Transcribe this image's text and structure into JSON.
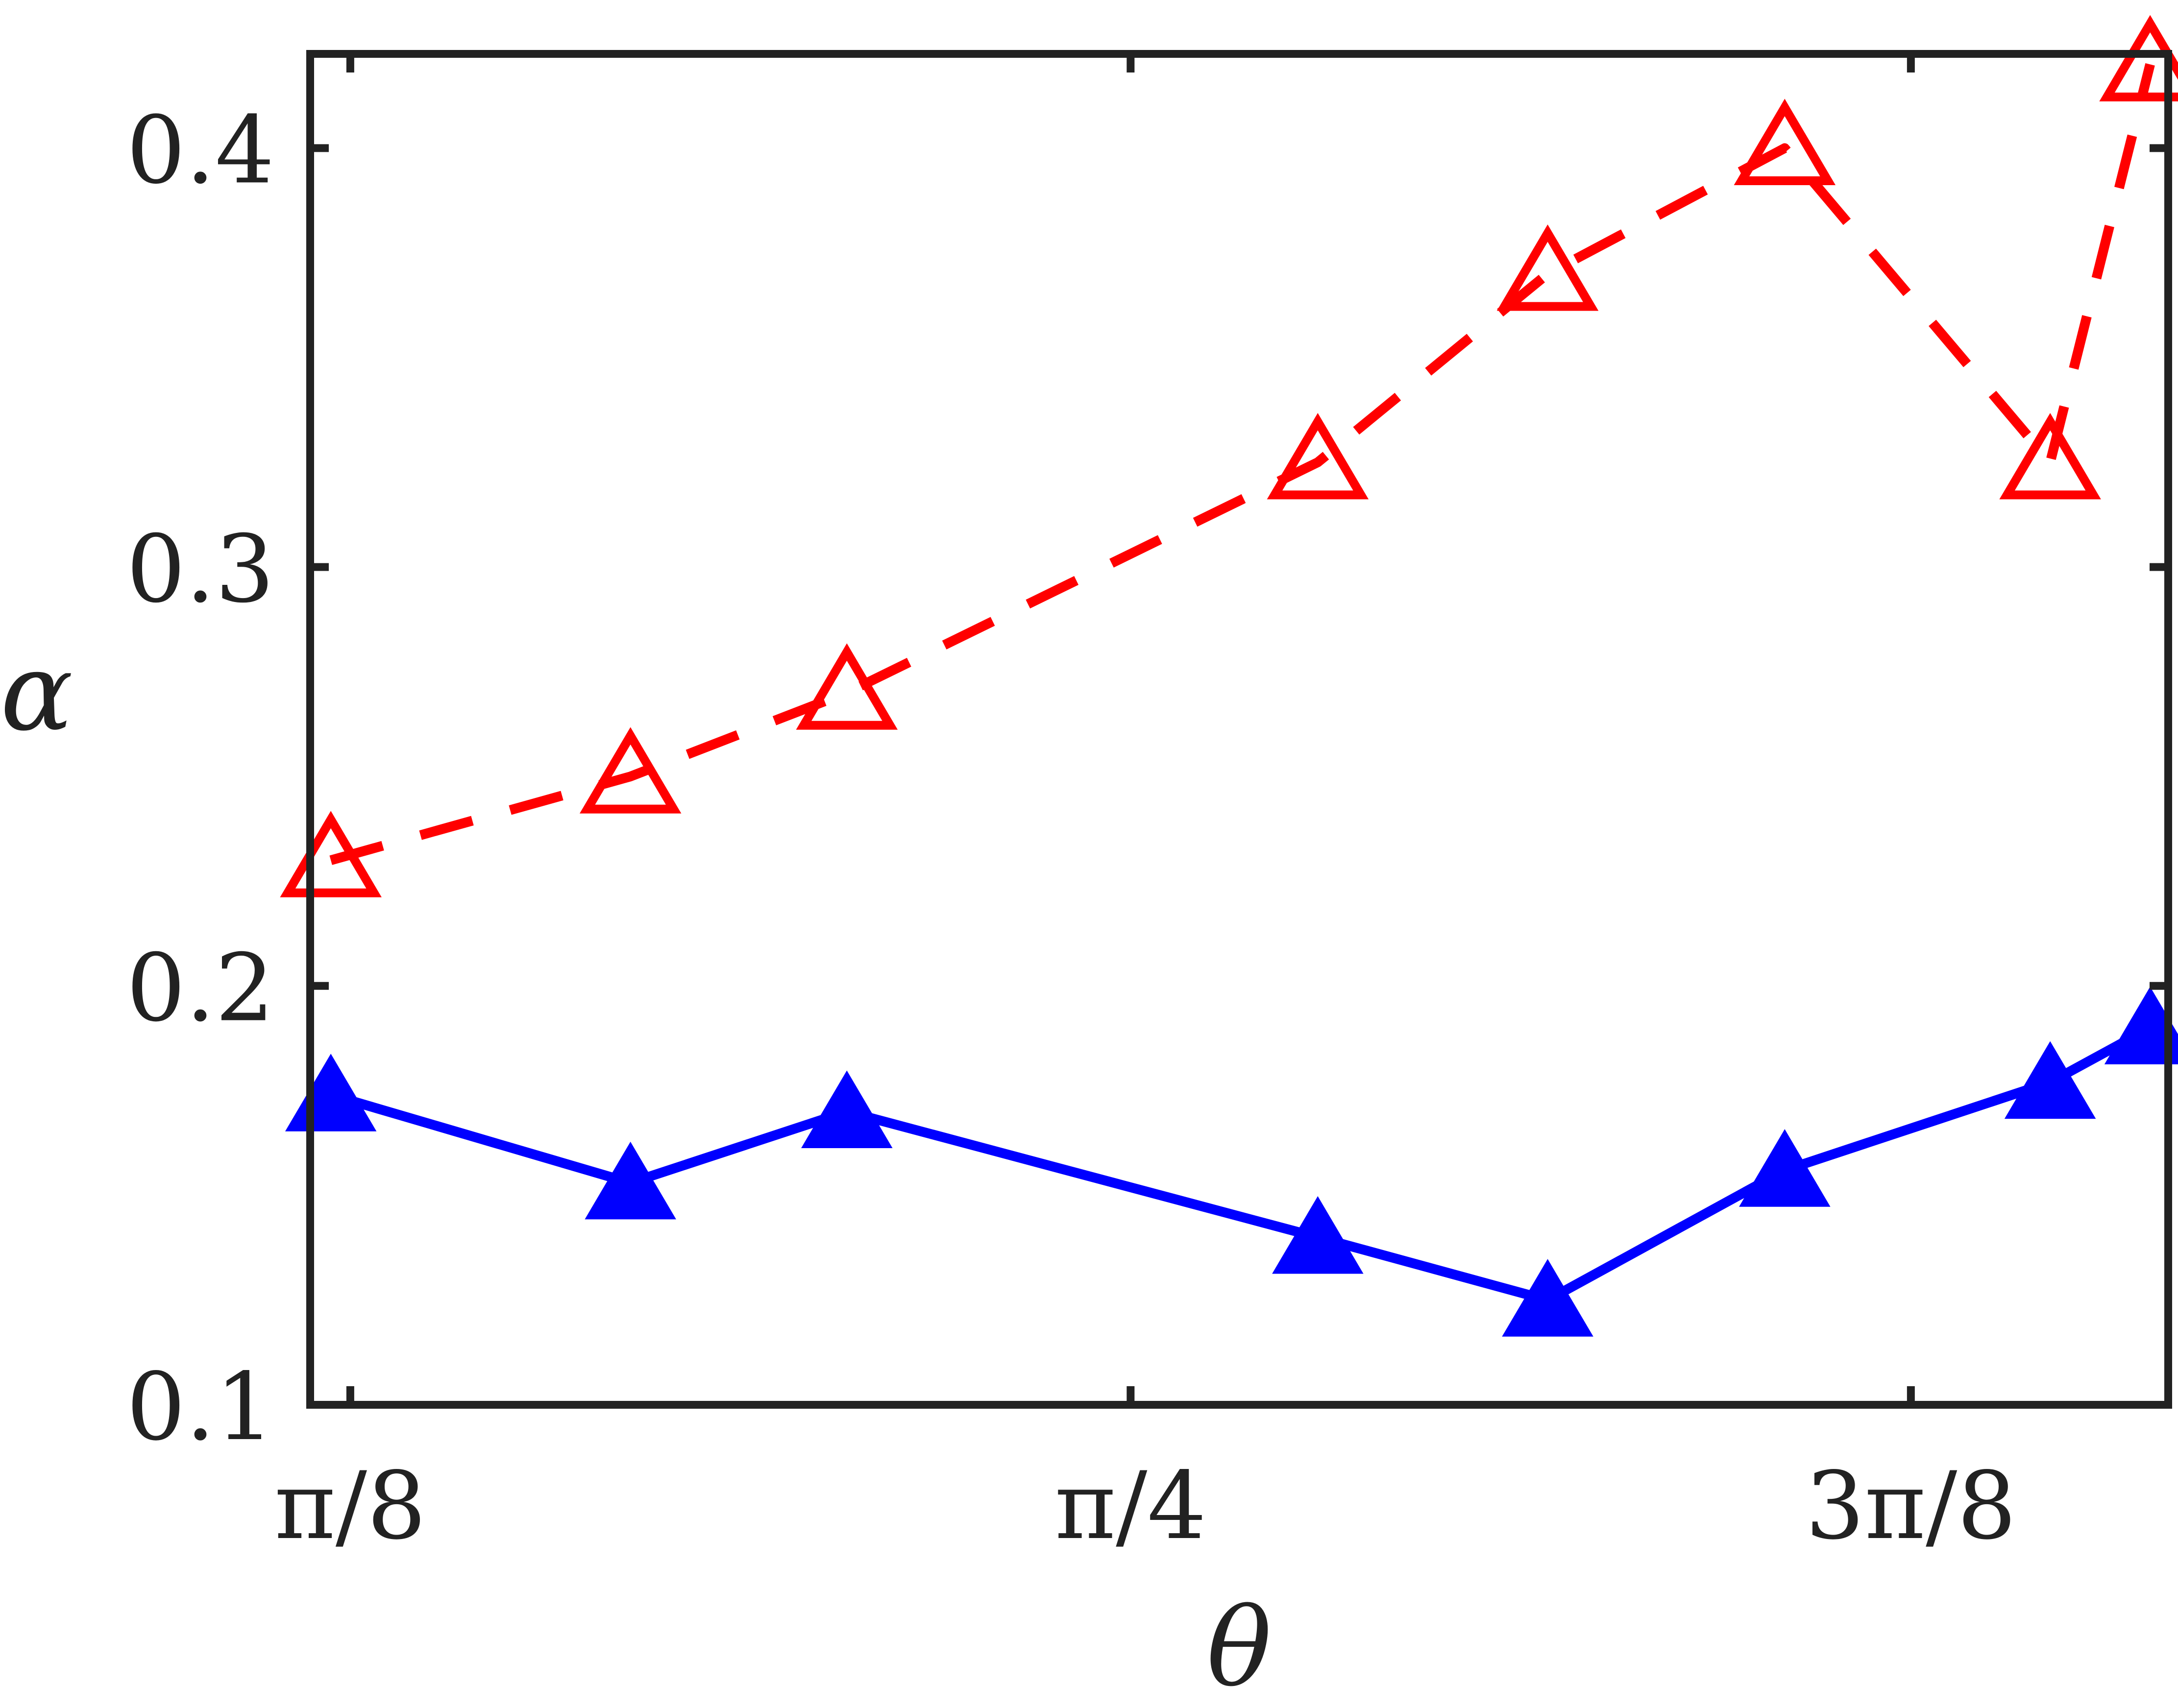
{
  "chart_data": {
    "type": "line",
    "xlabel": "θ",
    "ylabel": "α",
    "xlim": [
      0.3725,
      1.3076
    ],
    "ylim": [
      0.1,
      0.4225
    ],
    "x_ticks": [
      {
        "value": 0.3927,
        "label": "π/8"
      },
      {
        "value": 0.7854,
        "label": "π/4"
      },
      {
        "value": 1.1781,
        "label": "3π/8"
      }
    ],
    "y_ticks": [
      {
        "value": 0.1,
        "label": "0.1"
      },
      {
        "value": 0.2,
        "label": "0.2"
      },
      {
        "value": 0.3,
        "label": "0.3"
      },
      {
        "value": 0.4,
        "label": "0.4"
      }
    ],
    "grid": false,
    "legend": "none",
    "series": [
      {
        "style": "dashed",
        "marker": "open-triangle",
        "color": "#ff0000",
        "x": [
          0.3829,
          0.5337,
          0.6426,
          0.8796,
          0.9953,
          1.1146,
          1.2482,
          1.2985
        ],
        "y": [
          0.23,
          0.25,
          0.27,
          0.325,
          0.37,
          0.4,
          0.325,
          0.42
        ]
      },
      {
        "style": "solid",
        "marker": "filled-triangle",
        "color": "#0000ff",
        "x": [
          0.3829,
          0.5337,
          0.6426,
          0.8796,
          0.9953,
          1.1146,
          1.2482,
          1.2985
        ],
        "y": [
          0.174,
          0.153,
          0.17,
          0.14,
          0.125,
          0.156,
          0.177,
          0.19
        ]
      }
    ]
  }
}
